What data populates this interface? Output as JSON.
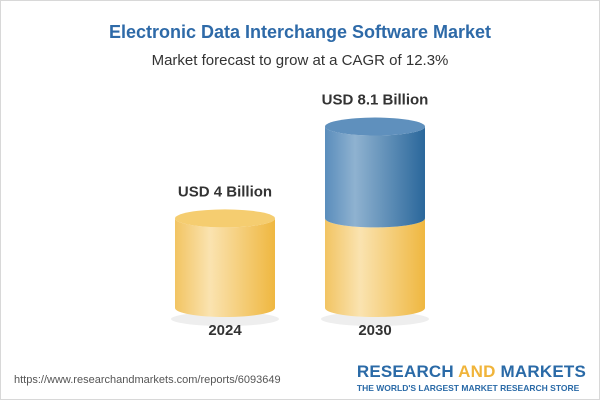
{
  "title": "Electronic Data Interchange Software Market",
  "subtitle": "Market forecast to grow at a CAGR of 12.3%",
  "chart_data": {
    "type": "bar",
    "style": "3d-cylinder",
    "categories": [
      "2024",
      "2030"
    ],
    "values": [
      4.0,
      8.1
    ],
    "unit": "USD Billion",
    "data_labels": [
      "USD 4 Billion",
      "USD 8.1 Billion"
    ],
    "colors": {
      "base": "#f3c35a",
      "growth": "#4b82b4"
    }
  },
  "footer": {
    "url": "https://www.researchandmarkets.com/reports/6093649",
    "logo_part1": "RESEARCH ",
    "logo_part2": "AND",
    "logo_part3": " MARKETS",
    "tagline": "THE WORLD'S LARGEST MARKET RESEARCH STORE"
  }
}
